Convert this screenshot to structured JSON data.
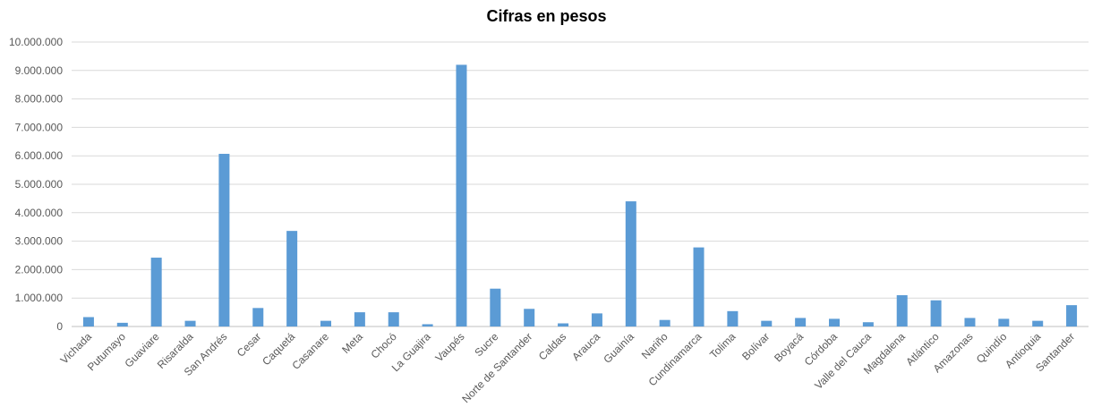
{
  "chart_data": {
    "type": "bar",
    "title": "Cifras en pesos",
    "xlabel": "",
    "ylabel": "",
    "ylim": [
      0,
      10000000
    ],
    "yticks": [
      0,
      1000000,
      2000000,
      3000000,
      4000000,
      5000000,
      6000000,
      7000000,
      8000000,
      9000000,
      10000000
    ],
    "ytick_labels": [
      "0",
      "1.000.000",
      "2.000.000",
      "3.000.000",
      "4.000.000",
      "5.000.000",
      "6.000.000",
      "7.000.000",
      "8.000.000",
      "9.000.000",
      "10.000.000"
    ],
    "grid": true,
    "legend": "none",
    "bar_color": "#5B9BD5",
    "categories": [
      "Vichada",
      "Putumayo",
      "Guaviare",
      "Risaralda",
      "San Andrés",
      "Cesar",
      "Caquetá",
      "Casanare",
      "Meta",
      "Chocó",
      "La Guajira",
      "Vaupés",
      "Sucre",
      "Norte de Santander",
      "Caldas",
      "Arauca",
      "Guainía",
      "Nariño",
      "Cundinamarca",
      "Tolima",
      "Bolívar",
      "Boyacá",
      "Córdoba",
      "Valle del Cauca",
      "Magdalena",
      "Atlántico",
      "Amazonas",
      "Quindío",
      "Antioquia",
      "Santander"
    ],
    "values": [
      330000,
      130000,
      2420000,
      200000,
      6070000,
      650000,
      3360000,
      200000,
      500000,
      500000,
      80000,
      9200000,
      1330000,
      620000,
      110000,
      460000,
      4400000,
      230000,
      2780000,
      540000,
      200000,
      300000,
      270000,
      150000,
      1100000,
      920000,
      300000,
      270000,
      200000,
      750000
    ]
  }
}
